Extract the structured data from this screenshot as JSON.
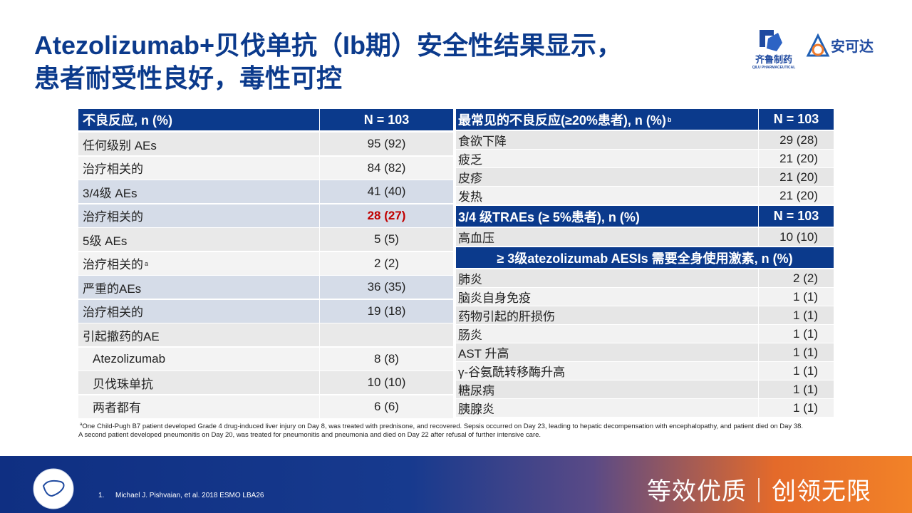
{
  "header": {
    "title": [
      "Atezolizumab+贝伐单抗（Ib期）安全性结果显示，",
      "患者耐受性良好，毒性可控"
    ],
    "logos": {
      "qilu_name": "齐鲁制药",
      "qilu_sub": "QILU PHARMACEUTICAL",
      "anketa_name": "安可达"
    }
  },
  "left_table": {
    "columns": [
      "不良反应, n (%)",
      "N = 103"
    ],
    "rows": [
      {
        "label": "任何级别 AEs",
        "value": "95 (92)"
      },
      {
        "label": "治疗相关的",
        "value": "84 (82)"
      },
      {
        "label": "3/4级 AEs",
        "value": "41 (40)"
      },
      {
        "label": "治疗相关的",
        "value": "28 (27)"
      },
      {
        "label": "5级 AEs",
        "value": "5 (5)"
      },
      {
        "label": "治疗相关的",
        "note": "a",
        "value": "2 (2)"
      },
      {
        "label": "严重的AEs",
        "value": "36 (35)"
      },
      {
        "label": "治疗相关的",
        "value": "19 (18)"
      },
      {
        "label": "引起撤药的AE"
      },
      {
        "label": "Atezolizumab",
        "value": "8 (8)"
      },
      {
        "label": "贝伐珠单抗",
        "value": "10 (10)"
      },
      {
        "label": "两者都有",
        "value": "6 (6)"
      }
    ]
  },
  "right_table": {
    "sections": [
      {
        "title": "最常见的不良反应(≥20%患者), n (%)",
        "note": "b",
        "n": "N = 103",
        "rows": [
          {
            "label": "食欲下降",
            "value": "29 (28)"
          },
          {
            "label": "疲乏",
            "value": "21 (20)"
          },
          {
            "label": "皮疹",
            "value": "21 (20)"
          },
          {
            "label": "发热",
            "value": "21 (20)"
          }
        ]
      },
      {
        "title": "3/4 级TRAEs (≥ 5%患者), n (%)",
        "n": "N = 103",
        "rows": [
          {
            "label": "高血压",
            "value": "10 (10)"
          }
        ]
      },
      {
        "title": "≥ 3级atezolizumab AESIs 需要全身使用激素, n (%)",
        "rows": [
          {
            "label": "肺炎",
            "value": "2 (2)"
          },
          {
            "label": "脑炎自身免疫",
            "value": "1 (1)"
          },
          {
            "label": "药物引起的肝损伤",
            "value": "1 (1)"
          },
          {
            "label": "肠炎",
            "value": "1 (1)"
          },
          {
            "label": "AST 升高",
            "value": "1 (1)"
          },
          {
            "label": "γ-谷氨酰转移酶升高",
            "value": "1 (1)"
          },
          {
            "label": "糖尿病",
            "value": "1 (1)"
          },
          {
            "label": "胰腺炎",
            "value": "1 (1)"
          }
        ]
      }
    ]
  },
  "footnotes": [
    {
      "mark": "a",
      "text": "One Child-Pugh B7 patient developed Grade 4 drug-induced liver injury on Day 8, was treated with prednisone, and recovered. Sepsis  occurred on Day 23, leading to hepatic decompensation with encephalopathy, and patient died on Day 38."
    },
    {
      "text": "A second patient developed pneumonitis on Day 20, was treated for pneumonitis and pneumonia and died on Day 22 after refusal of further intensive care."
    }
  ],
  "footer": {
    "reference_number": "1.",
    "reference": "Michael J. Pishvaian, et al. 2018 ESMO LBA26",
    "slogan": "等效优质｜创领无限"
  }
}
